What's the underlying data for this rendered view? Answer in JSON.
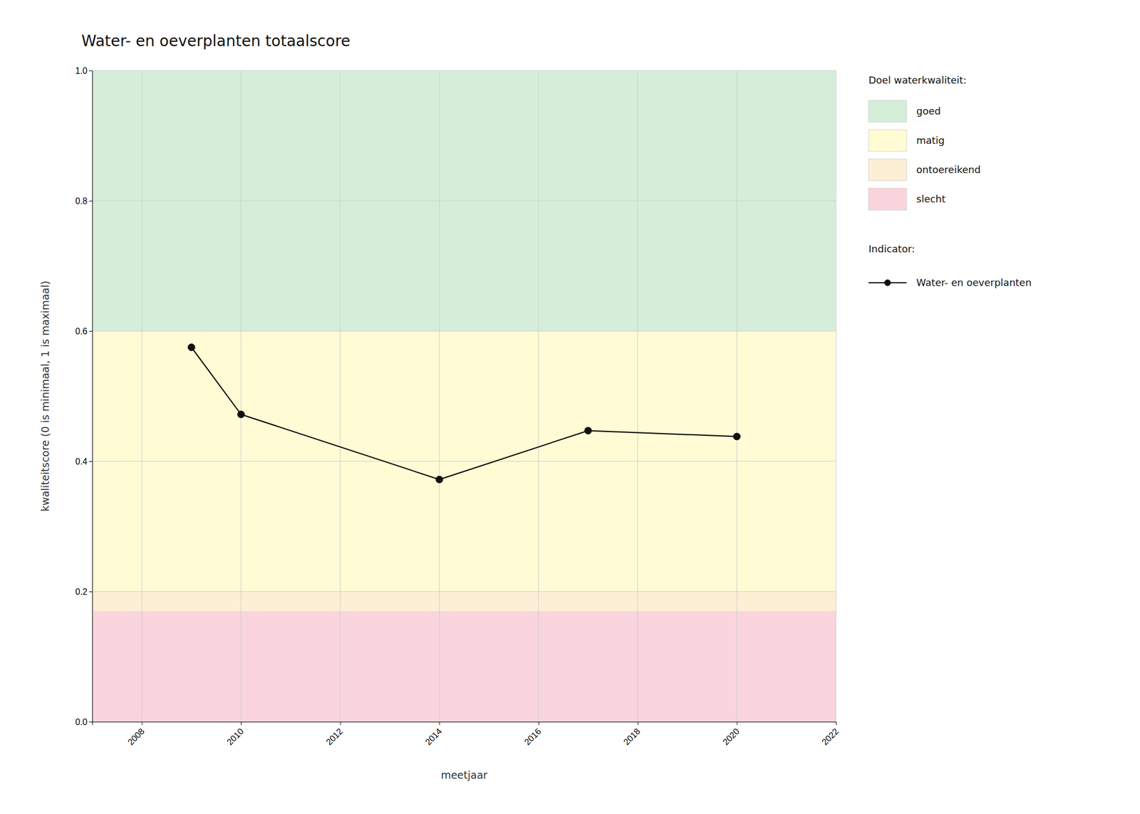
{
  "chart_data": {
    "type": "line",
    "title": "Water- en oeverplanten totaalscore",
    "x_label": "meetjaar",
    "y_label": "kwaliteitscore (0 is minimaal, 1 is maximaal)",
    "x": [
      2009,
      2010,
      2014,
      2017,
      2020
    ],
    "series": [
      {
        "name": "Water- en oeverplanten",
        "color": "#111111",
        "marker": "circle",
        "values": [
          0.575,
          0.472,
          0.372,
          0.447,
          0.438
        ]
      }
    ],
    "xlim": [
      2007,
      2022
    ],
    "ylim": [
      0.0,
      1.0
    ],
    "xticks": [
      2008,
      2010,
      2012,
      2014,
      2016,
      2018,
      2020,
      2022
    ],
    "yticks": [
      {
        "value": 0.0,
        "label": "0.0"
      },
      0.2,
      0.4,
      0.6,
      0.8,
      {
        "value": 1.0,
        "label": "1.0"
      }
    ],
    "grid": true,
    "legend": "right",
    "bands_title": "Doel waterkwaliteit:",
    "series_title": "Indicator:",
    "bands": [
      {
        "label": "goed",
        "color": "#d5eeda",
        "ymin": 0.6,
        "ymax": 1.0
      },
      {
        "label": "matig",
        "color": "#fefbd5",
        "ymin": 0.2,
        "ymax": 0.6
      },
      {
        "label": "ontoereikend",
        "color": "#fdefd5",
        "ymin": 0.17,
        "ymax": 0.2
      },
      {
        "label": "slecht",
        "color": "#fad5dd",
        "ymin": 0.0,
        "ymax": 0.17
      }
    ]
  }
}
